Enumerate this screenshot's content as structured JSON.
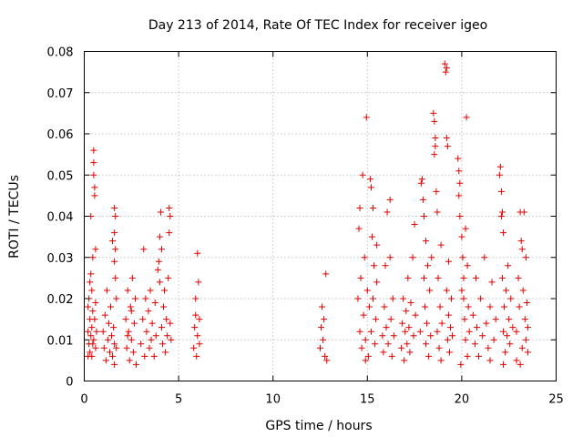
{
  "chart_data": {
    "type": "scatter",
    "title": "Day 213 of 2014, Rate Of TEC Index for receiver igeo",
    "xlabel": "GPS time / hours",
    "ylabel": "ROTI / TECUs",
    "xlim": [
      0,
      25
    ],
    "ylim": [
      0,
      0.08
    ],
    "x_ticks": [
      0,
      5,
      10,
      15,
      20,
      25
    ],
    "x_tick_labels": [
      "0",
      "5",
      "10",
      "15",
      "20",
      "25"
    ],
    "y_ticks": [
      0,
      0.01,
      0.02,
      0.03,
      0.04,
      0.05,
      0.06,
      0.07,
      0.08
    ],
    "y_tick_labels": [
      "0",
      "0.01",
      "0.02",
      "0.03",
      "0.04",
      "0.05",
      "0.06",
      "0.07",
      "0.08"
    ],
    "grid": true,
    "marker": "+",
    "color": "#e00000",
    "series": [
      {
        "name": "ROTI",
        "points": [
          [
            0.2,
            0.006
          ],
          [
            0.2,
            0.012
          ],
          [
            0.2,
            0.018
          ],
          [
            0.25,
            0.009
          ],
          [
            0.25,
            0.02
          ],
          [
            0.3,
            0.007
          ],
          [
            0.3,
            0.015
          ],
          [
            0.3,
            0.024
          ],
          [
            0.35,
            0.011
          ],
          [
            0.35,
            0.04
          ],
          [
            0.4,
            0.006
          ],
          [
            0.4,
            0.013
          ],
          [
            0.4,
            0.022
          ],
          [
            0.45,
            0.009
          ],
          [
            0.45,
            0.017
          ],
          [
            0.45,
            0.03
          ],
          [
            0.5,
            0.056
          ],
          [
            0.5,
            0.053
          ],
          [
            0.5,
            0.05
          ],
          [
            0.55,
            0.047
          ],
          [
            0.55,
            0.045
          ],
          [
            0.5,
            0.01
          ],
          [
            0.55,
            0.015
          ],
          [
            0.6,
            0.032
          ],
          [
            0.6,
            0.008
          ],
          [
            0.6,
            0.019
          ],
          [
            0.65,
            0.012
          ],
          [
            0.35,
            0.026
          ],
          [
            1.0,
            0.012
          ],
          [
            1.05,
            0.008
          ],
          [
            1.1,
            0.016
          ],
          [
            1.15,
            0.005
          ],
          [
            1.2,
            0.022
          ],
          [
            1.25,
            0.01
          ],
          [
            1.3,
            0.014
          ],
          [
            1.35,
            0.007
          ],
          [
            1.4,
            0.018
          ],
          [
            1.45,
            0.011
          ],
          [
            1.5,
            0.006
          ],
          [
            1.55,
            0.013
          ],
          [
            1.6,
            0.009
          ],
          [
            1.5,
            0.034
          ],
          [
            1.6,
            0.042
          ],
          [
            1.65,
            0.04
          ],
          [
            1.6,
            0.036
          ],
          [
            1.65,
            0.032
          ],
          [
            1.6,
            0.029
          ],
          [
            1.65,
            0.025
          ],
          [
            1.7,
            0.02
          ],
          [
            1.7,
            0.008
          ],
          [
            1.6,
            0.004
          ],
          [
            2.2,
            0.015
          ],
          [
            2.25,
            0.008
          ],
          [
            2.3,
            0.022
          ],
          [
            2.35,
            0.012
          ],
          [
            2.4,
            0.005
          ],
          [
            2.45,
            0.018
          ],
          [
            2.5,
            0.01
          ],
          [
            2.55,
            0.025
          ],
          [
            2.6,
            0.007
          ],
          [
            2.65,
            0.014
          ],
          [
            2.7,
            0.02
          ],
          [
            2.75,
            0.004
          ],
          [
            2.5,
            0.017
          ],
          [
            2.3,
            0.011
          ],
          [
            3.0,
            0.009
          ],
          [
            3.1,
            0.015
          ],
          [
            3.15,
            0.032
          ],
          [
            3.2,
            0.006
          ],
          [
            3.25,
            0.02
          ],
          [
            3.3,
            0.012
          ],
          [
            3.4,
            0.017
          ],
          [
            3.45,
            0.008
          ],
          [
            3.5,
            0.022
          ],
          [
            3.55,
            0.01
          ],
          [
            3.6,
            0.014
          ],
          [
            3.7,
            0.006
          ],
          [
            3.75,
            0.019
          ],
          [
            3.8,
            0.011
          ],
          [
            3.9,
            0.027
          ],
          [
            3.95,
            0.029
          ],
          [
            4.0,
            0.024
          ],
          [
            4.0,
            0.035
          ],
          [
            4.05,
            0.041
          ],
          [
            4.1,
            0.032
          ],
          [
            4.1,
            0.013
          ],
          [
            4.15,
            0.009
          ],
          [
            4.2,
            0.018
          ],
          [
            4.25,
            0.022
          ],
          [
            4.3,
            0.007
          ],
          [
            4.35,
            0.015
          ],
          [
            4.4,
            0.011
          ],
          [
            4.45,
            0.025
          ],
          [
            4.5,
            0.042
          ],
          [
            4.55,
            0.04
          ],
          [
            4.5,
            0.036
          ],
          [
            4.55,
            0.014
          ],
          [
            4.6,
            0.01
          ],
          [
            5.8,
            0.008
          ],
          [
            5.85,
            0.013
          ],
          [
            5.9,
            0.02
          ],
          [
            5.9,
            0.016
          ],
          [
            5.95,
            0.006
          ],
          [
            6.0,
            0.011
          ],
          [
            6.0,
            0.031
          ],
          [
            6.05,
            0.024
          ],
          [
            6.1,
            0.009
          ],
          [
            6.1,
            0.015
          ],
          [
            12.5,
            0.008
          ],
          [
            12.55,
            0.013
          ],
          [
            12.6,
            0.018
          ],
          [
            12.65,
            0.01
          ],
          [
            12.7,
            0.015
          ],
          [
            12.75,
            0.006
          ],
          [
            12.8,
            0.026
          ],
          [
            12.85,
            0.005
          ],
          [
            14.5,
            0.02
          ],
          [
            14.55,
            0.037
          ],
          [
            14.6,
            0.042
          ],
          [
            14.6,
            0.012
          ],
          [
            14.65,
            0.025
          ],
          [
            14.7,
            0.008
          ],
          [
            14.75,
            0.05
          ],
          [
            14.8,
            0.016
          ],
          [
            14.85,
            0.03
          ],
          [
            14.9,
            0.01
          ],
          [
            14.95,
            0.064
          ],
          [
            15.0,
            0.022
          ],
          [
            15.05,
            0.006
          ],
          [
            15.1,
            0.018
          ],
          [
            15.15,
            0.049
          ],
          [
            15.2,
            0.012
          ],
          [
            15.25,
            0.035
          ],
          [
            15.3,
            0.02
          ],
          [
            15.35,
            0.028
          ],
          [
            15.4,
            0.009
          ],
          [
            15.45,
            0.015
          ],
          [
            15.5,
            0.024
          ],
          [
            15.5,
            0.033
          ],
          [
            14.9,
            0.005
          ],
          [
            15.3,
            0.042
          ],
          [
            15.2,
            0.047
          ],
          [
            15.8,
            0.011
          ],
          [
            15.85,
            0.007
          ],
          [
            15.9,
            0.018
          ],
          [
            15.95,
            0.028
          ],
          [
            16.0,
            0.013
          ],
          [
            16.05,
            0.041
          ],
          [
            16.1,
            0.009
          ],
          [
            16.2,
            0.03
          ],
          [
            16.2,
            0.044
          ],
          [
            16.25,
            0.015
          ],
          [
            16.3,
            0.006
          ],
          [
            16.35,
            0.02
          ],
          [
            16.4,
            0.011
          ],
          [
            16.8,
            0.008
          ],
          [
            16.85,
            0.014
          ],
          [
            16.9,
            0.02
          ],
          [
            16.95,
            0.005
          ],
          [
            17.0,
            0.012
          ],
          [
            17.05,
            0.017
          ],
          [
            17.1,
            0.009
          ],
          [
            17.15,
            0.025
          ],
          [
            17.2,
            0.013
          ],
          [
            17.25,
            0.007
          ],
          [
            17.3,
            0.019
          ],
          [
            17.4,
            0.03
          ],
          [
            17.45,
            0.011
          ],
          [
            17.5,
            0.038
          ],
          [
            17.55,
            0.016
          ],
          [
            17.8,
            0.012
          ],
          [
            17.85,
            0.048
          ],
          [
            17.9,
            0.049
          ],
          [
            17.95,
            0.044
          ],
          [
            18.0,
            0.025
          ],
          [
            18.0,
            0.04
          ],
          [
            18.05,
            0.018
          ],
          [
            18.1,
            0.034
          ],
          [
            18.1,
            0.009
          ],
          [
            18.15,
            0.014
          ],
          [
            18.2,
            0.028
          ],
          [
            18.25,
            0.006
          ],
          [
            18.3,
            0.022
          ],
          [
            18.35,
            0.011
          ],
          [
            18.4,
            0.03
          ],
          [
            18.5,
            0.065
          ],
          [
            18.55,
            0.063
          ],
          [
            18.6,
            0.059
          ],
          [
            18.55,
            0.055
          ],
          [
            18.6,
            0.057
          ],
          [
            18.65,
            0.046
          ],
          [
            18.7,
            0.041
          ],
          [
            18.7,
            0.012
          ],
          [
            18.75,
            0.025
          ],
          [
            18.8,
            0.008
          ],
          [
            18.85,
            0.018
          ],
          [
            18.9,
            0.033
          ],
          [
            18.95,
            0.014
          ],
          [
            18.9,
            0.005
          ],
          [
            19.1,
            0.077
          ],
          [
            19.15,
            0.075
          ],
          [
            19.2,
            0.076
          ],
          [
            19.2,
            0.059
          ],
          [
            19.25,
            0.057
          ],
          [
            19.2,
            0.022
          ],
          [
            19.25,
            0.01
          ],
          [
            19.3,
            0.016
          ],
          [
            19.3,
            0.029
          ],
          [
            19.35,
            0.007
          ],
          [
            19.4,
            0.013
          ],
          [
            19.45,
            0.02
          ],
          [
            19.5,
            0.011
          ],
          [
            19.8,
            0.054
          ],
          [
            19.85,
            0.051
          ],
          [
            19.9,
            0.048
          ],
          [
            19.85,
            0.045
          ],
          [
            19.9,
            0.04
          ],
          [
            20.0,
            0.035
          ],
          [
            20.05,
            0.03
          ],
          [
            20.1,
            0.025
          ],
          [
            20.1,
            0.02
          ],
          [
            20.15,
            0.015
          ],
          [
            20.2,
            0.01
          ],
          [
            20.25,
            0.064
          ],
          [
            20.2,
            0.037
          ],
          [
            20.3,
            0.006
          ],
          [
            20.35,
            0.018
          ],
          [
            20.4,
            0.012
          ],
          [
            19.95,
            0.004
          ],
          [
            20.0,
            0.022
          ],
          [
            20.3,
            0.028
          ],
          [
            20.6,
            0.016
          ],
          [
            20.7,
            0.009
          ],
          [
            20.75,
            0.025
          ],
          [
            20.8,
            0.013
          ],
          [
            20.9,
            0.006
          ],
          [
            21.0,
            0.02
          ],
          [
            21.1,
            0.011
          ],
          [
            21.2,
            0.03
          ],
          [
            21.3,
            0.014
          ],
          [
            21.4,
            0.008
          ],
          [
            21.5,
            0.018
          ],
          [
            21.6,
            0.024
          ],
          [
            21.7,
            0.01
          ],
          [
            21.8,
            0.015
          ],
          [
            21.5,
            0.005
          ],
          [
            22.0,
            0.05
          ],
          [
            22.05,
            0.052
          ],
          [
            22.1,
            0.046
          ],
          [
            22.1,
            0.04
          ],
          [
            22.15,
            0.041
          ],
          [
            22.2,
            0.036
          ],
          [
            22.15,
            0.025
          ],
          [
            22.2,
            0.012
          ],
          [
            22.25,
            0.018
          ],
          [
            22.3,
            0.007
          ],
          [
            22.35,
            0.022
          ],
          [
            22.4,
            0.011
          ],
          [
            22.5,
            0.015
          ],
          [
            22.55,
            0.009
          ],
          [
            22.6,
            0.02
          ],
          [
            22.7,
            0.013
          ],
          [
            22.2,
            0.004
          ],
          [
            22.45,
            0.028
          ],
          [
            22.9,
            0.012
          ],
          [
            23.0,
            0.025
          ],
          [
            23.05,
            0.018
          ],
          [
            23.1,
            0.041
          ],
          [
            23.15,
            0.034
          ],
          [
            23.2,
            0.032
          ],
          [
            23.2,
            0.008
          ],
          [
            23.25,
            0.022
          ],
          [
            23.3,
            0.041
          ],
          [
            23.35,
            0.015
          ],
          [
            23.4,
            0.03
          ],
          [
            23.4,
            0.01
          ],
          [
            23.45,
            0.019
          ],
          [
            23.5,
            0.013
          ],
          [
            23.5,
            0.007
          ],
          [
            22.9,
            0.005
          ],
          [
            23.1,
            0.004
          ]
        ]
      }
    ]
  }
}
